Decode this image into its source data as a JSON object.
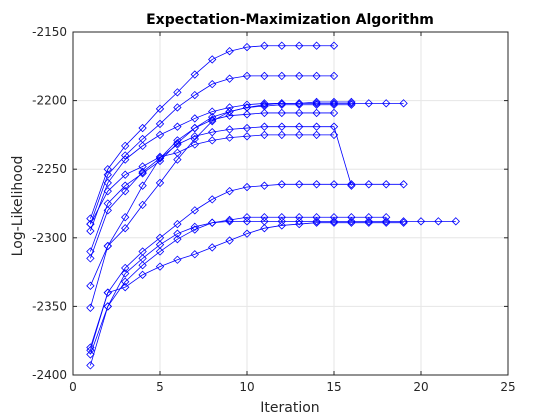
{
  "chart_data": {
    "type": "line",
    "title": "Expectation-Maximization Algorithm",
    "xlabel": "Iteration",
    "ylabel": "Log-Likelihood",
    "xlim": [
      0,
      25
    ],
    "ylim": [
      -2400,
      -2150
    ],
    "xticks": [
      "0",
      "5",
      "10",
      "15",
      "20",
      "25"
    ],
    "yticks": [
      "-2400",
      "-2350",
      "-2300",
      "-2250",
      "-2200",
      "-2150"
    ],
    "grid": true,
    "marker": "diamond",
    "series_color": "#0000ff",
    "series": [
      {
        "x": [
          1,
          2,
          3,
          4,
          5,
          6,
          7,
          8,
          9,
          10,
          11,
          12,
          13,
          14,
          15
        ],
        "values": [
          -2286,
          -2250,
          -2233,
          -2220,
          -2206,
          -2194,
          -2181,
          -2170,
          -2164,
          -2161,
          -2160,
          -2160,
          -2160,
          -2160,
          -2160
        ]
      },
      {
        "x": [
          1,
          2,
          3,
          4,
          5,
          6,
          7,
          8,
          9,
          10,
          11,
          12,
          13,
          14,
          15
        ],
        "values": [
          -2290,
          -2254,
          -2240,
          -2228,
          -2217,
          -2205,
          -2196,
          -2188,
          -2184,
          -2182,
          -2182,
          -2182,
          -2182,
          -2182,
          -2182
        ]
      },
      {
        "x": [
          1,
          2,
          3,
          4,
          5,
          6,
          7,
          8,
          9,
          10,
          11,
          12,
          13,
          14,
          15,
          16,
          17,
          18,
          19
        ],
        "values": [
          -2295,
          -2260,
          -2243,
          -2233,
          -2225,
          -2219,
          -2213,
          -2208,
          -2205,
          -2203,
          -2202,
          -2202,
          -2202,
          -2202,
          -2202,
          -2202,
          -2202,
          -2202,
          -2202
        ]
      },
      {
        "x": [
          1,
          2,
          3,
          4,
          5,
          6,
          7,
          8,
          9,
          10,
          11,
          12,
          13,
          14,
          15,
          16
        ],
        "values": [
          -2310,
          -2275,
          -2262,
          -2253,
          -2244,
          -2231,
          -2220,
          -2212,
          -2208,
          -2205,
          -2204,
          -2203,
          -2203,
          -2203,
          -2203,
          -2203
        ]
      },
      {
        "x": [
          1,
          2,
          3,
          4,
          5,
          6,
          7,
          8,
          9,
          10,
          11,
          12,
          13,
          14,
          15
        ],
        "values": [
          -2315,
          -2280,
          -2266,
          -2252,
          -2242,
          -2229,
          -2220,
          -2214,
          -2211,
          -2210,
          -2209,
          -2209,
          -2209,
          -2209,
          -2209
        ]
      },
      {
        "x": [
          1,
          2,
          3,
          4,
          5,
          6,
          7,
          8,
          9,
          10,
          11,
          12,
          13,
          14,
          15,
          16
        ],
        "values": [
          -2335,
          -2306,
          -2293,
          -2276,
          -2260,
          -2243,
          -2228,
          -2215,
          -2208,
          -2205,
          -2203,
          -2202,
          -2202,
          -2201,
          -2201,
          -2201
        ]
      },
      {
        "x": [
          1,
          2,
          3,
          4,
          5,
          6,
          7,
          8,
          9,
          10,
          11,
          12,
          13,
          14,
          15,
          16,
          17,
          18,
          19
        ],
        "values": [
          -2380,
          -2340,
          -2322,
          -2310,
          -2300,
          -2290,
          -2280,
          -2272,
          -2266,
          -2263,
          -2262,
          -2261,
          -2261,
          -2261,
          -2261,
          -2261,
          -2261,
          -2261,
          -2261
        ]
      },
      {
        "x": [
          1,
          2,
          3,
          4,
          5,
          6,
          7,
          8,
          9,
          10,
          11,
          12,
          13,
          14,
          15
        ],
        "values": [
          -2290,
          -2266,
          -2254,
          -2248,
          -2241,
          -2238,
          -2232,
          -2229,
          -2227,
          -2226,
          -2225,
          -2225,
          -2225,
          -2225,
          -2225
        ]
      },
      {
        "x": [
          1,
          2,
          3,
          4,
          5,
          6,
          7,
          8,
          9,
          10,
          11,
          12,
          13,
          14,
          15,
          16
        ],
        "values": [
          -2351,
          -2306,
          -2285,
          -2262,
          -2242,
          -2232,
          -2226,
          -2223,
          -2221,
          -2220,
          -2219,
          -2219,
          -2219,
          -2219,
          -2219,
          -2262
        ]
      },
      {
        "x": [
          1,
          2,
          3,
          4,
          5,
          6,
          7,
          8,
          9,
          10,
          11,
          12,
          13,
          14,
          15,
          16,
          17,
          18,
          19,
          20,
          21,
          22
        ],
        "values": [
          -2385,
          -2350,
          -2326,
          -2315,
          -2305,
          -2297,
          -2292,
          -2289,
          -2288,
          -2288,
          -2288,
          -2288,
          -2288,
          -2288,
          -2288,
          -2288,
          -2288,
          -2288,
          -2288,
          -2288,
          -2288,
          -2288
        ]
      },
      {
        "x": [
          1,
          2,
          3,
          4,
          5,
          6,
          7,
          8,
          9,
          10,
          11,
          12,
          13,
          14,
          15,
          16,
          17,
          18
        ],
        "values": [
          -2393,
          -2350,
          -2332,
          -2320,
          -2310,
          -2301,
          -2294,
          -2289,
          -2287,
          -2285,
          -2285,
          -2285,
          -2285,
          -2285,
          -2285,
          -2285,
          -2285,
          -2285
        ]
      },
      {
        "x": [
          1,
          2,
          3,
          4,
          5,
          6,
          7,
          8,
          9,
          10,
          11,
          12,
          13,
          14,
          15,
          16,
          17,
          18,
          19
        ],
        "values": [
          -2382,
          -2340,
          -2336,
          -2327,
          -2321,
          -2316,
          -2312,
          -2307,
          -2302,
          -2297,
          -2293,
          -2291,
          -2290,
          -2289,
          -2289,
          -2289,
          -2289,
          -2289,
          -2289
        ]
      }
    ]
  }
}
